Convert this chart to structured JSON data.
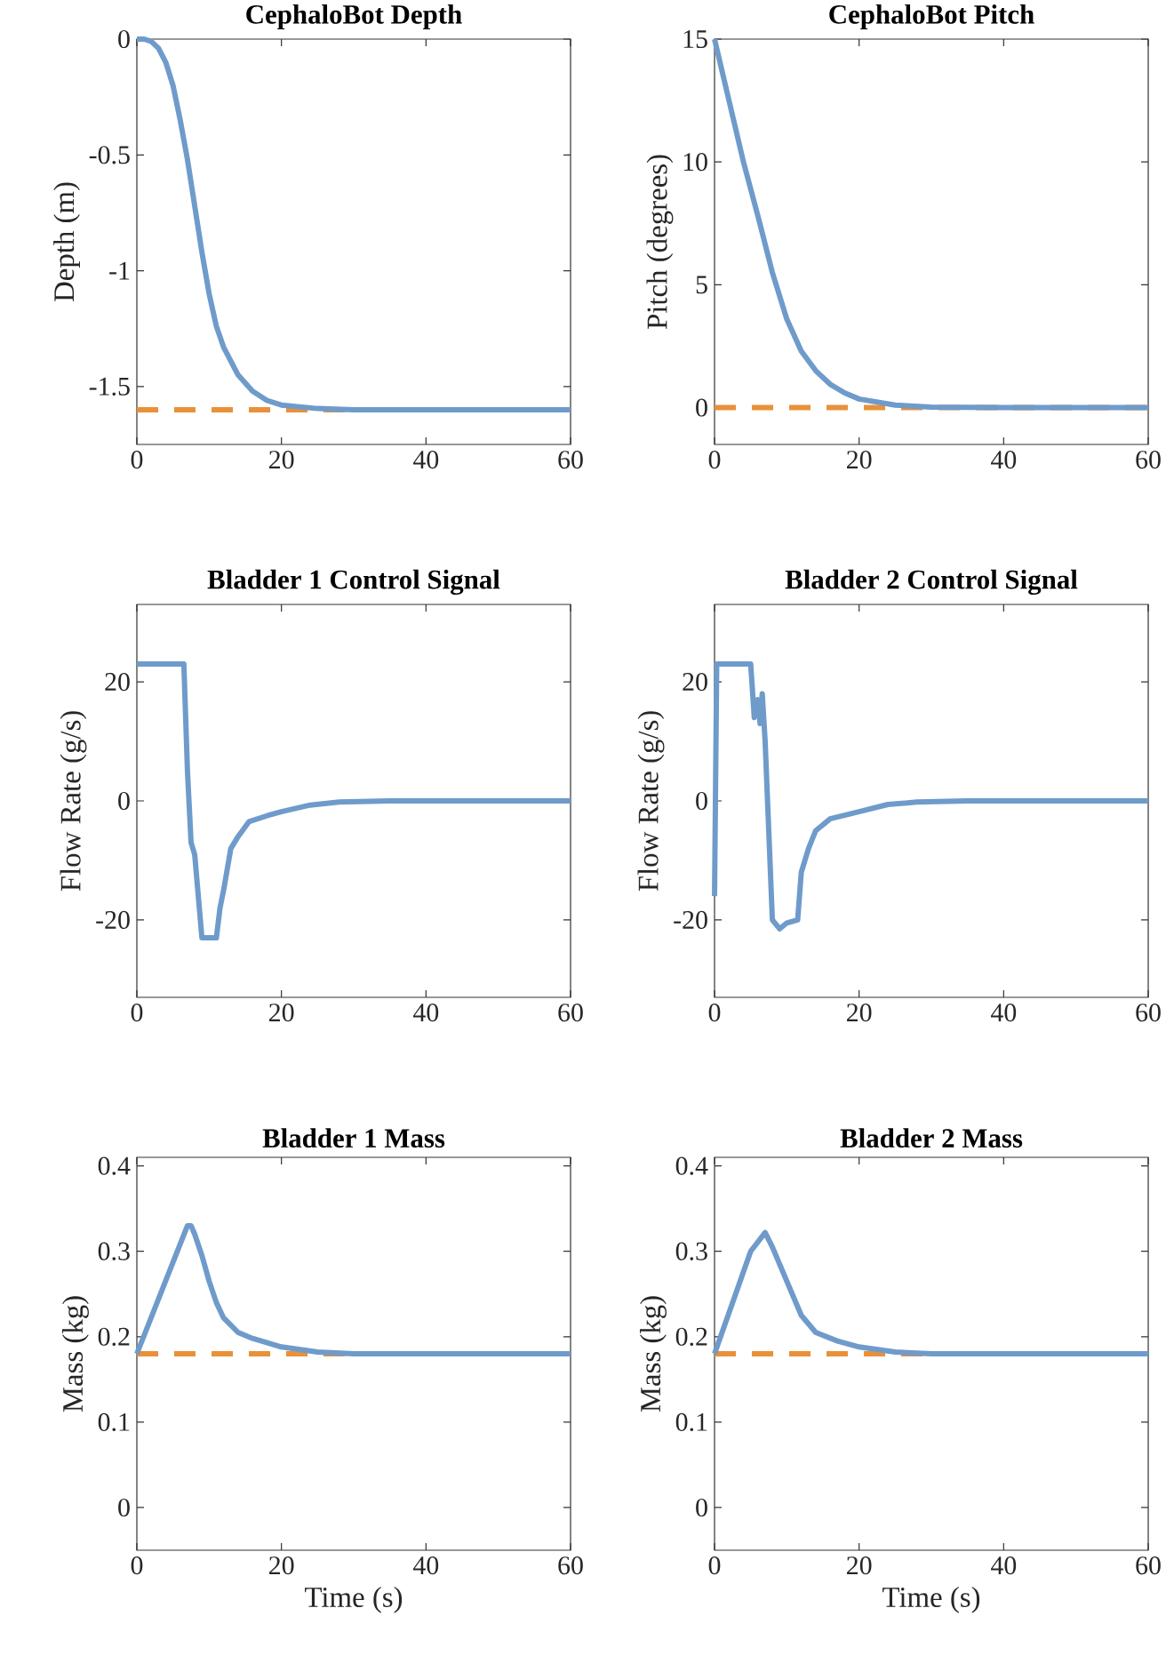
{
  "chart_data": [
    {
      "type": "line",
      "title": "CephaloBot Depth",
      "ylabel": "Depth (m)",
      "xlim": [
        0,
        60
      ],
      "ylim": [
        -1.75,
        0
      ],
      "xticks": [
        0,
        20,
        40,
        60
      ],
      "yticks": [
        -1.5,
        -1,
        -0.5,
        0
      ],
      "series": [
        {
          "color": "#6f9bcb",
          "x": [
            0,
            1,
            2,
            3,
            4,
            5,
            6,
            7,
            8,
            9,
            10,
            11,
            12,
            14,
            16,
            18,
            20,
            25,
            30,
            40,
            60
          ],
          "values": [
            0,
            0,
            -0.01,
            -0.04,
            -0.1,
            -0.2,
            -0.35,
            -0.52,
            -0.72,
            -0.92,
            -1.1,
            -1.24,
            -1.33,
            -1.45,
            -1.52,
            -1.56,
            -1.58,
            -1.595,
            -1.6,
            -1.6,
            -1.6
          ]
        }
      ],
      "ref_lines": [
        {
          "axis": "y",
          "value": -1.6,
          "color": "#e8913a",
          "line_style": "dashed"
        }
      ]
    },
    {
      "type": "line",
      "title": "CephaloBot Pitch",
      "ylabel": "Pitch (degrees)",
      "xlim": [
        0,
        60
      ],
      "ylim": [
        -1.5,
        15
      ],
      "xticks": [
        0,
        20,
        40,
        60
      ],
      "yticks": [
        0,
        5,
        10,
        15
      ],
      "series": [
        {
          "color": "#6f9bcb",
          "x": [
            0,
            2,
            4,
            6,
            8,
            10,
            12,
            14,
            16,
            18,
            20,
            25,
            30,
            40,
            60
          ],
          "values": [
            15,
            12.5,
            10,
            7.8,
            5.5,
            3.6,
            2.3,
            1.5,
            0.95,
            0.6,
            0.35,
            0.1,
            0.02,
            0,
            0
          ]
        }
      ],
      "ref_lines": [
        {
          "axis": "y",
          "value": 0,
          "color": "#e8913a",
          "line_style": "dashed"
        }
      ]
    },
    {
      "type": "line",
      "title": "Bladder 1 Control Signal",
      "ylabel": "Flow Rate (g/s)",
      "xlim": [
        0,
        60
      ],
      "ylim": [
        -33,
        33
      ],
      "xticks": [
        0,
        20,
        40,
        60
      ],
      "yticks": [
        -20,
        0,
        20
      ],
      "series": [
        {
          "color": "#6f9bcb",
          "x": [
            0,
            6.5,
            7,
            7.5,
            8,
            8.5,
            9,
            11,
            11.5,
            12,
            13,
            14,
            15.5,
            18,
            20,
            24,
            28,
            35,
            60
          ],
          "values": [
            23,
            23,
            5,
            -7,
            -9,
            -16,
            -23,
            -23,
            -18,
            -15,
            -8,
            -6,
            -3.5,
            -2.5,
            -1.8,
            -0.7,
            -0.2,
            0,
            0
          ]
        }
      ]
    },
    {
      "type": "line",
      "title": "Bladder 2 Control Signal",
      "ylabel": "Flow Rate (g/s)",
      "xlim": [
        0,
        60
      ],
      "ylim": [
        -33,
        33
      ],
      "xticks": [
        0,
        20,
        40,
        60
      ],
      "yticks": [
        -20,
        0,
        20
      ],
      "series": [
        {
          "color": "#6f9bcb",
          "x": [
            0,
            0.3,
            5,
            5.5,
            6,
            6.3,
            6.6,
            7,
            7.5,
            8,
            9,
            10,
            11.5,
            12,
            13,
            14,
            16,
            20,
            24,
            28,
            35,
            60
          ],
          "values": [
            -16,
            23,
            23,
            14,
            17,
            13,
            18,
            10,
            -5,
            -20,
            -21.5,
            -20.5,
            -20,
            -12,
            -8,
            -5,
            -3,
            -1.8,
            -0.6,
            -0.2,
            0,
            0
          ]
        }
      ]
    },
    {
      "type": "line",
      "title": "Bladder 1 Mass",
      "xlabel": "Time (s)",
      "ylabel": "Mass (kg)",
      "xlim": [
        0,
        60
      ],
      "ylim": [
        -0.05,
        0.41
      ],
      "xticks": [
        0,
        20,
        40,
        60
      ],
      "yticks": [
        0,
        0.1,
        0.2,
        0.3,
        0.4
      ],
      "series": [
        {
          "color": "#6f9bcb",
          "x": [
            0,
            7,
            7.5,
            8,
            9,
            10,
            11,
            12,
            14,
            16,
            20,
            25,
            30,
            60
          ],
          "values": [
            0.18,
            0.33,
            0.33,
            0.32,
            0.295,
            0.265,
            0.24,
            0.222,
            0.205,
            0.198,
            0.188,
            0.182,
            0.18,
            0.18
          ]
        }
      ],
      "ref_lines": [
        {
          "axis": "y",
          "value": 0.18,
          "color": "#e8913a",
          "line_style": "dashed"
        }
      ]
    },
    {
      "type": "line",
      "title": "Bladder 2 Mass",
      "xlabel": "Time (s)",
      "ylabel": "Mass (kg)",
      "xlim": [
        0,
        60
      ],
      "ylim": [
        -0.05,
        0.41
      ],
      "xticks": [
        0,
        20,
        40,
        60
      ],
      "yticks": [
        0,
        0.1,
        0.2,
        0.3,
        0.4
      ],
      "series": [
        {
          "color": "#6f9bcb",
          "x": [
            0,
            5,
            7,
            8,
            10,
            12,
            14,
            17,
            20,
            25,
            30,
            60
          ],
          "values": [
            0.18,
            0.3,
            0.322,
            0.305,
            0.265,
            0.225,
            0.205,
            0.195,
            0.188,
            0.182,
            0.18,
            0.18
          ]
        }
      ],
      "ref_lines": [
        {
          "axis": "y",
          "value": 0.18,
          "color": "#e8913a",
          "line_style": "dashed"
        }
      ]
    }
  ]
}
